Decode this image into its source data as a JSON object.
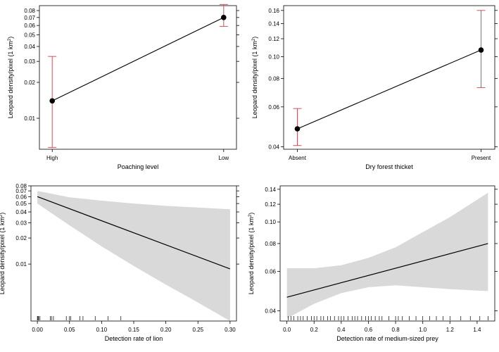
{
  "chart_data": [
    {
      "type": "point-errorbar",
      "panel": "top-left",
      "categories": [
        "High",
        "Low"
      ],
      "values": [
        0.014,
        0.07
      ],
      "ci_lower": [
        0.0057,
        0.059
      ],
      "ci_upper": [
        0.033,
        0.09
      ],
      "xlabel": "Poaching level",
      "ylabel": "Leopard density/pixel (1 km²)",
      "ylim": [
        0.0055,
        0.088
      ],
      "yscale": "log",
      "yticks": [
        0.01,
        0.02,
        0.03,
        0.04,
        0.05,
        0.06,
        0.07,
        0.08
      ],
      "ytick_labels": [
        "0.01",
        "0.02",
        "0.03",
        "0.04",
        "0.05",
        "0.06",
        "0.07",
        "0.08"
      ]
    },
    {
      "type": "point-errorbar",
      "panel": "top-right",
      "categories": [
        "Absent",
        "Present"
      ],
      "values": [
        0.048,
        0.107
      ],
      "ci_lower": [
        0.0405,
        0.073
      ],
      "ci_upper": [
        0.059,
        0.16
      ],
      "xlabel": "Dry forest thicket",
      "ylabel": "Leopard density/pixel (1 km²)",
      "ylim": [
        0.039,
        0.168
      ],
      "yscale": "log",
      "yticks": [
        0.04,
        0.06,
        0.08,
        0.1,
        0.12,
        0.14,
        0.16
      ],
      "ytick_labels": [
        "0.04",
        "0.06",
        "0.08",
        "0.10",
        "0.12",
        "0.14",
        "0.16"
      ]
    },
    {
      "type": "line-ribbon",
      "panel": "bottom-left",
      "x": [
        0.0,
        0.3
      ],
      "y": [
        0.06,
        0.0088
      ],
      "band_x": [
        0.0,
        0.05,
        0.1,
        0.15,
        0.2,
        0.25,
        0.3
      ],
      "band_lower": [
        0.05,
        0.028,
        0.016,
        0.0095,
        0.0058,
        0.0036,
        0.0022
      ],
      "band_upper": [
        0.07,
        0.059,
        0.054,
        0.05,
        0.047,
        0.045,
        0.043
      ],
      "xlabel": "Detection rate of lion",
      "ylabel": "Leopard density/pixel (1 km²)",
      "xlim": [
        -0.01,
        0.31
      ],
      "ylim": [
        0.0022,
        0.08
      ],
      "yscale": "log",
      "xticks": [
        0.0,
        0.05,
        0.1,
        0.15,
        0.2,
        0.25,
        0.3
      ],
      "xtick_labels": [
        "0.00",
        "0.05",
        "0.10",
        "0.15",
        "0.20",
        "0.25",
        "0.30"
      ],
      "yticks": [
        0.01,
        0.02,
        0.03,
        0.04,
        0.05,
        0.06,
        0.07,
        0.08
      ],
      "ytick_labels": [
        "0.01",
        "0.02",
        "0.03",
        "0.04",
        "0.05",
        "0.06",
        "0.07",
        "0.08"
      ],
      "rug": [
        0.0,
        0.001,
        0.002,
        0.004,
        0.02,
        0.022,
        0.025,
        0.045,
        0.05,
        0.052,
        0.066,
        0.071,
        0.09,
        0.11,
        0.13
      ]
    },
    {
      "type": "line-ribbon",
      "panel": "bottom-right",
      "x": [
        0.0,
        1.48
      ],
      "y": [
        0.046,
        0.08
      ],
      "band_x": [
        0.0,
        0.2,
        0.4,
        0.6,
        0.8,
        1.0,
        1.2,
        1.48
      ],
      "band_lower": [
        0.037,
        0.043,
        0.048,
        0.051,
        0.052,
        0.051,
        0.05,
        0.049
      ],
      "band_upper": [
        0.062,
        0.062,
        0.064,
        0.069,
        0.077,
        0.09,
        0.105,
        0.135
      ],
      "xlabel": "Detection rate of medium-sized prey",
      "ylabel": "Leopard density/pixel (1 km²)",
      "xlim": [
        -0.05,
        1.53
      ],
      "ylim": [
        0.036,
        0.145
      ],
      "yscale": "log",
      "xticks": [
        0.0,
        0.2,
        0.4,
        0.6,
        0.8,
        1.0,
        1.2,
        1.4
      ],
      "xtick_labels": [
        "0.0",
        "0.2",
        "0.4",
        "0.6",
        "0.8",
        "1.0",
        "1.2",
        "1.4"
      ],
      "yticks": [
        0.04,
        0.06,
        0.08,
        0.1,
        0.12,
        0.14
      ],
      "ytick_labels": [
        "0.04",
        "0.06",
        "0.08",
        "0.10",
        "0.12",
        "0.14"
      ],
      "rug": [
        0.01,
        0.03,
        0.05,
        0.08,
        0.1,
        0.12,
        0.15,
        0.18,
        0.2,
        0.22,
        0.25,
        0.27,
        0.3,
        0.32,
        0.35,
        0.38,
        0.4,
        0.42,
        0.45,
        0.48,
        0.5,
        0.52,
        0.55,
        0.58,
        0.6,
        0.62,
        0.65,
        0.68,
        0.7,
        0.75,
        0.8,
        0.82,
        0.85,
        0.9,
        0.95,
        1.0,
        1.05,
        1.1,
        1.15,
        1.2,
        1.28,
        1.35,
        1.42,
        1.48
      ]
    }
  ]
}
